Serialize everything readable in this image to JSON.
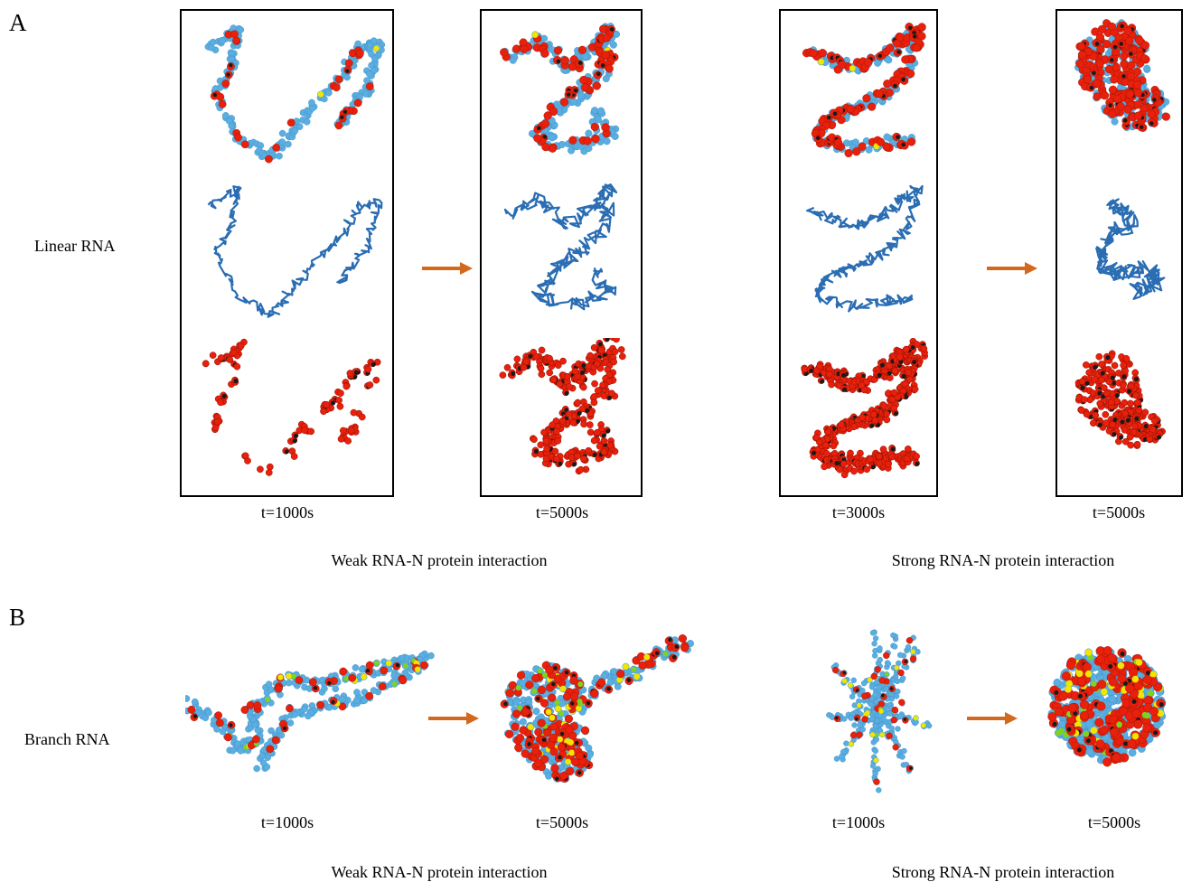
{
  "panels": {
    "a": "A",
    "b": "B"
  },
  "row_labels": {
    "linear": "Linear RNA",
    "branch": "Branch RNA"
  },
  "time_labels": {
    "a_weak_1": "t=1000s",
    "a_weak_2": "t=5000s",
    "a_strong_1": "t=3000s",
    "a_strong_2": "t=5000s",
    "b_weak_1": "t=1000s",
    "b_weak_2": "t=5000s",
    "b_strong_1": "t=1000s",
    "b_strong_2": "t=5000s"
  },
  "group_labels": {
    "a_weak": "Weak RNA-N protein interaction",
    "a_strong": "Strong RNA-N protein interaction",
    "b_weak": "Weak RNA-N protein interaction",
    "b_strong": "Strong RNA-N protein interaction"
  },
  "colors": {
    "rna_bead": "#5aaee0",
    "rna_backbone": "#2a6db3",
    "protein": "#e8200c",
    "protein_core": "#1a1a1a",
    "marker_yellow": "#f2e600",
    "marker_green": "#7ed321",
    "arrow": "#d2691e",
    "frame": "#000000"
  }
}
